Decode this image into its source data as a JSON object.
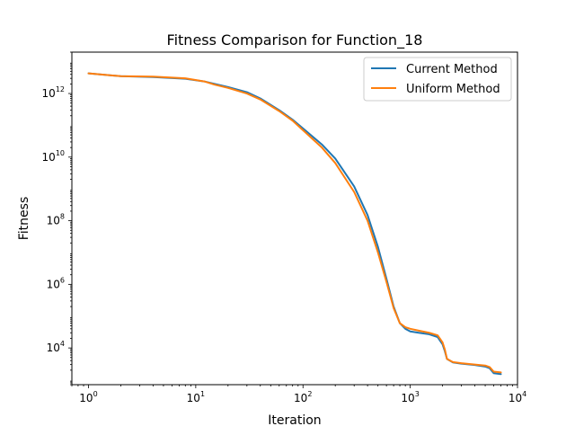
{
  "chart_data": {
    "type": "line",
    "title": "Fitness Comparison for Function_18",
    "xlabel": "Iteration",
    "ylabel": "Fitness",
    "xscale": "log",
    "yscale": "log",
    "xlim": [
      0.7,
      10000
    ],
    "ylim": [
      700,
      20000000000000
    ],
    "grid": false,
    "legend_position": "top-right",
    "x_ticks": [
      {
        "base": "10",
        "exp": "0",
        "value": 1
      },
      {
        "base": "10",
        "exp": "1",
        "value": 10
      },
      {
        "base": "10",
        "exp": "2",
        "value": 100
      },
      {
        "base": "10",
        "exp": "3",
        "value": 1000
      },
      {
        "base": "10",
        "exp": "4",
        "value": 10000
      }
    ],
    "y_ticks": [
      {
        "base": "10",
        "exp": "4",
        "value": 10000
      },
      {
        "base": "10",
        "exp": "6",
        "value": 1000000
      },
      {
        "base": "10",
        "exp": "8",
        "value": 100000000
      },
      {
        "base": "10",
        "exp": "10",
        "value": 10000000000
      },
      {
        "base": "10",
        "exp": "12",
        "value": 1000000000000
      }
    ],
    "series": [
      {
        "name": "Current Method",
        "color": "#1f77b4",
        "x": [
          1,
          2,
          4,
          8,
          12,
          15,
          20,
          30,
          40,
          60,
          80,
          100,
          150,
          200,
          300,
          400,
          500,
          600,
          700,
          800,
          900,
          1000,
          1200,
          1500,
          1800,
          2000,
          2100,
          2200,
          2500,
          3000,
          4000,
          5000,
          5500,
          6000,
          7000
        ],
        "y": [
          4300000000000.0,
          3500000000000.0,
          3300000000000.0,
          2900000000000.0,
          2400000000000.0,
          2000000000000.0,
          1600000000000.0,
          1100000000000.0,
          700000000000.0,
          300000000000.0,
          150000000000.0,
          80000000000.0,
          25000000000.0,
          9000000000.0,
          1200000000.0,
          150000000.0,
          15000000.0,
          1500000.0,
          200000.0,
          60000.0,
          40000.0,
          33000.0,
          30000.0,
          27000.0,
          22000.0,
          13000.0,
          8000.0,
          4500.0,
          3500.0,
          3200.0,
          2900.0,
          2600.0,
          2300.0,
          1600.0,
          1500.0
        ]
      },
      {
        "name": "Uniform Method",
        "color": "#ff7f0e",
        "x": [
          1,
          2,
          4,
          8,
          12,
          15,
          20,
          30,
          40,
          60,
          80,
          100,
          150,
          200,
          300,
          400,
          500,
          600,
          700,
          800,
          900,
          1000,
          1200,
          1500,
          1800,
          2000,
          2100,
          2200,
          2500,
          3000,
          4000,
          5000,
          5500,
          6000,
          7000
        ],
        "y": [
          4300000000000.0,
          3500000000000.0,
          3400000000000.0,
          3000000000000.0,
          2400000000000.0,
          1900000000000.0,
          1500000000000.0,
          1000000000000.0,
          650000000000.0,
          280000000000.0,
          140000000000.0,
          70000000000.0,
          20000000000.0,
          6500000000.0,
          800000000.0,
          100000000.0,
          10000000.0,
          1200000.0,
          180000.0,
          60000.0,
          45000.0,
          40000.0,
          35000.0,
          30000.0,
          25000.0,
          15000.0,
          9000.0,
          4500.0,
          3600.0,
          3300.0,
          3000.0,
          2800.0,
          2500.0,
          1800.0,
          1700.0
        ]
      }
    ]
  }
}
